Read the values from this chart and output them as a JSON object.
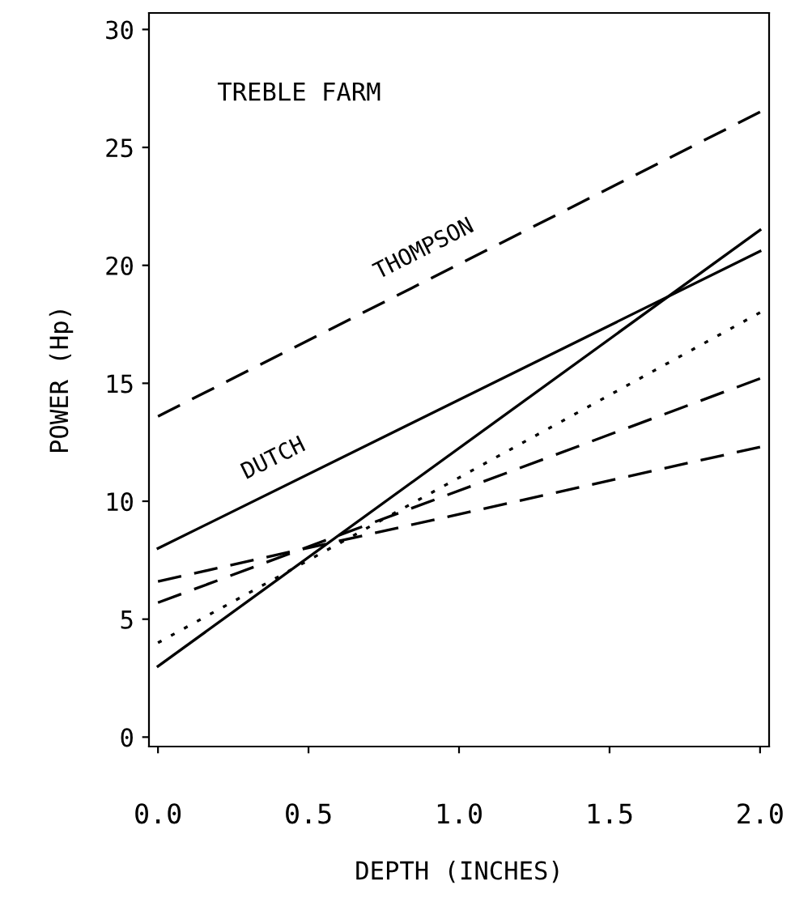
{
  "chart_data": {
    "type": "line",
    "title": "TREBLE FARM",
    "xlabel": "DEPTH (INCHES)",
    "ylabel": "POWER (Hp)",
    "x": [
      0.0,
      2.0
    ],
    "series": [
      {
        "name": "THOMPSON",
        "color": "#000000",
        "values": [
          13.6,
          26.5
        ],
        "line_style": "dashed"
      },
      {
        "name": "DUTCH",
        "color": "#000000",
        "values": [
          8.0,
          20.6
        ],
        "line_style": "solid"
      },
      {
        "color": "#000000",
        "values": [
          3.0,
          21.5
        ],
        "line_style": "solid"
      },
      {
        "color": "#000000",
        "values": [
          4.0,
          18.0
        ],
        "line_style": "dotted"
      },
      {
        "color": "#000000",
        "values": [
          5.7,
          15.2
        ],
        "line_style": "dashed"
      },
      {
        "color": "#000000",
        "values": [
          6.6,
          12.3
        ],
        "line_style": "dashed"
      }
    ],
    "xlim": [
      -0.03,
      2.03
    ],
    "ylim": [
      -0.4,
      30.7
    ],
    "xticks": [
      {
        "value": 0.0,
        "label": "0.0"
      },
      {
        "value": 0.5,
        "label": "0.5"
      },
      {
        "value": 1.0,
        "label": "1.0"
      },
      {
        "value": 1.5,
        "label": "1.5"
      },
      {
        "value": 2.0,
        "label": "2.0"
      }
    ],
    "yticks": [
      0,
      5,
      10,
      15,
      20,
      25,
      30
    ],
    "grid": false,
    "legend": false,
    "marker": "none"
  }
}
